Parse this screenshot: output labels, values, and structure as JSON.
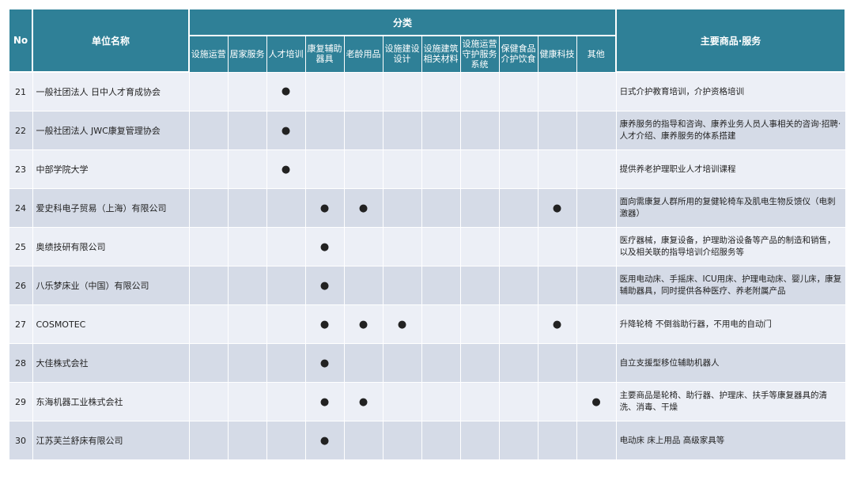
{
  "header": {
    "no": "No",
    "name": "单位名称",
    "category": "分类",
    "main": "主要商品·服务",
    "categories": [
      "设施运营",
      "居家服务",
      "人才培训",
      "康复辅助器具",
      "老龄用品",
      "设施建设设计",
      "设施建筑相关材料",
      "设施运营守护服务系统",
      "保健食品介护饮食",
      "健康科技",
      "其他"
    ]
  },
  "rows": [
    {
      "no": "21",
      "name": "一般社团法人 日中人才育成协会",
      "marks": [
        3
      ],
      "desc": "日式介护教育培训，介护资格培训"
    },
    {
      "no": "22",
      "name": "一般社团法人 JWC康复管理协会",
      "marks": [
        3
      ],
      "desc": "康养服务的指导和咨询、康养业务人员人事相关的咨询·招聘·人才介绍、康养服务的体系搭建"
    },
    {
      "no": "23",
      "name": "中部学院大学",
      "marks": [
        3
      ],
      "desc": "提供养老护理职业人才培训课程"
    },
    {
      "no": "24",
      "name": "爱史科电子贸易（上海）有限公司",
      "marks": [
        4,
        5,
        10
      ],
      "desc": "面向需康复人群所用的复健轮椅车及肌电生物反馈仪（电刺激器）"
    },
    {
      "no": "25",
      "name": "奥绩技研有限公司",
      "marks": [
        4
      ],
      "desc": "医疗器械，康复设备，护理助浴设备等产品的制造和销售，以及相关联的指导培训介绍服务等"
    },
    {
      "no": "26",
      "name": "八乐梦床业（中国）有限公司",
      "marks": [
        4
      ],
      "desc": "医用电动床、手摇床、ICU用床、护理电动床、婴儿床，康复辅助器具，同时提供各种医疗、养老附属产品"
    },
    {
      "no": "27",
      "name": "COSMOTEC",
      "marks": [
        4,
        5,
        6,
        10
      ],
      "desc": "升降轮椅 不倒翁助行器，不用电的自动门"
    },
    {
      "no": "28",
      "name": "大佳株式会社",
      "marks": [
        4
      ],
      "desc": "自立支援型移位辅助机器人"
    },
    {
      "no": "29",
      "name": "东海机器工业株式会社",
      "marks": [
        4,
        5,
        11
      ],
      "desc": "主要商品是轮椅、助行器、护理床、扶手等康复器具的清洗、消毒、干燥"
    },
    {
      "no": "30",
      "name": "江苏芙兰舒床有限公司",
      "marks": [
        4
      ],
      "desc": "电动床 床上用品 高级家具等"
    }
  ],
  "mark_symbol": "●",
  "colors": {
    "header": "#2f8097",
    "row_light": "#eceff6",
    "row_dark": "#d5dbe7"
  }
}
